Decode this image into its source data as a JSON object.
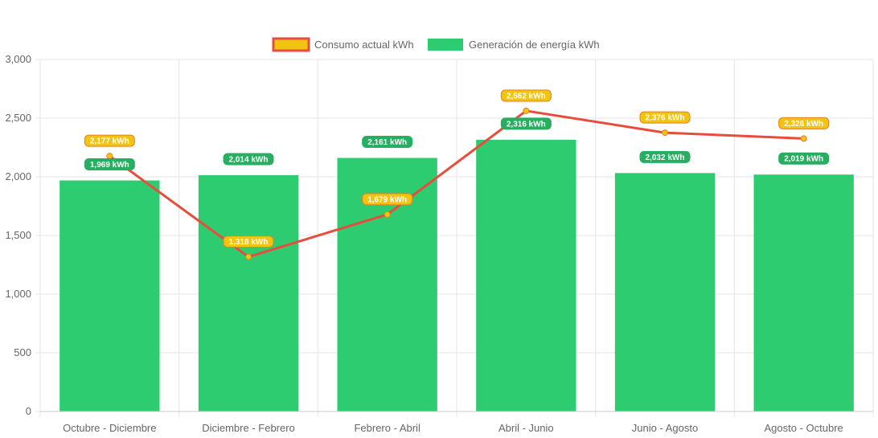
{
  "chart_data": {
    "type": "bar",
    "categories": [
      "Octubre - Diciembre",
      "Diciembre - Febrero",
      "Febrero - Abril",
      "Abril - Junio",
      "Junio - Agosto",
      "Agosto - Octubre"
    ],
    "ylim": [
      0,
      3000
    ],
    "y_ticks": [
      0,
      500,
      1000,
      1500,
      2000,
      2500,
      3000
    ],
    "y_tick_labels": [
      "0",
      "500",
      "1,000",
      "1,500",
      "2,000",
      "2,500",
      "3,000"
    ],
    "grid": true,
    "legend_position": "top-center",
    "series": [
      {
        "name": "Consumo actual kWh",
        "type": "line",
        "values": [
          2177,
          1318,
          1679,
          2562,
          2376,
          2326
        ],
        "labels": [
          "2,177 kWh",
          "1,318 kWh",
          "1,679 kWh",
          "2,562 kWh",
          "2,376 kWh",
          "2,326 kWh"
        ],
        "color": "#e74c3c",
        "fill": "#f1c40f",
        "label_bg": "#f1c40f",
        "label_border": "#e67e22"
      },
      {
        "name": "Generación de energía kWh",
        "type": "bar",
        "values": [
          1969,
          2014,
          2161,
          2316,
          2032,
          2019
        ],
        "labels": [
          "1,969 kWh",
          "2,014 kWh",
          "2,161 kWh",
          "2,316 kWh",
          "2,032 kWh",
          "2,019 kWh"
        ],
        "color": "#2ecc71",
        "label_bg": "#27ae60"
      }
    ]
  }
}
